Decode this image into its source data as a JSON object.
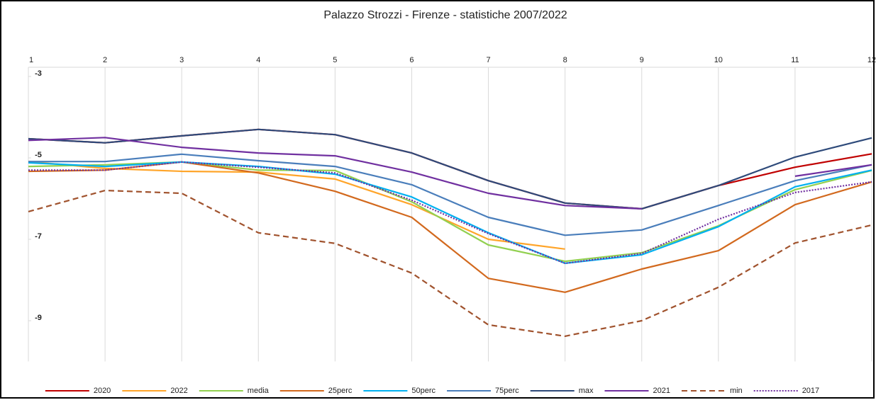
{
  "chart_data": {
    "type": "line",
    "title": "Palazzo Strozzi - Firenze - statistiche 2007/2022",
    "x": [
      1,
      2,
      3,
      4,
      5,
      6,
      7,
      8,
      9,
      10,
      11,
      12
    ],
    "xlim": [
      1,
      12
    ],
    "xticks": [
      1,
      2,
      3,
      4,
      5,
      6,
      7,
      8,
      9,
      10,
      11,
      12
    ],
    "ylim": [
      -10,
      -3
    ],
    "yticks": [
      -3,
      -5,
      -7,
      -9
    ],
    "grid": "vertical",
    "legend": "bottom",
    "series": [
      {
        "name": "2020",
        "color": "#c00000",
        "style": "solid",
        "values": [
          -4.53,
          -4.63,
          -4.46,
          -4.3,
          -4.43,
          -4.88,
          -5.56,
          -6.11,
          -6.25,
          -5.68,
          -5.23,
          -4.9
        ]
      },
      {
        "name": "2022",
        "color": "#ffa52a",
        "style": "solid",
        "values": [
          -5.09,
          -5.26,
          -5.33,
          -5.35,
          -5.52,
          -6.15,
          -7.0,
          -7.24,
          null,
          null,
          null,
          null
        ]
      },
      {
        "name": "media",
        "color": "#92d050",
        "style": "solid",
        "values": [
          -5.21,
          -5.17,
          -5.1,
          -5.3,
          -5.31,
          -6.08,
          -7.14,
          -7.54,
          -7.33,
          -6.67,
          -5.78,
          -5.31
        ]
      },
      {
        "name": "25perc",
        "color": "#d2691e",
        "style": "solid",
        "values": [
          -5.33,
          -5.3,
          -5.1,
          -5.37,
          -5.82,
          -6.46,
          -7.96,
          -8.3,
          -7.73,
          -7.28,
          -6.15,
          -5.59
        ]
      },
      {
        "name": "50perc",
        "color": "#00b0f0",
        "style": "solid",
        "values": [
          -5.12,
          -5.21,
          -5.1,
          -5.21,
          -5.4,
          -5.96,
          -6.84,
          -7.59,
          -7.38,
          -6.69,
          -5.71,
          -5.3
        ]
      },
      {
        "name": "75perc",
        "color": "#4a7ebb",
        "style": "solid",
        "values": [
          -5.09,
          -5.09,
          -4.91,
          -5.07,
          -5.21,
          -5.66,
          -6.46,
          -6.9,
          -6.77,
          -6.17,
          -5.56,
          -5.17
        ]
      },
      {
        "name": "max",
        "color": "#2e4a7a",
        "style": "solid",
        "values": [
          -4.53,
          -4.63,
          -4.46,
          -4.3,
          -4.43,
          -4.88,
          -5.56,
          -6.11,
          -6.25,
          -5.68,
          -4.98,
          -4.51
        ]
      },
      {
        "name": "2021",
        "color": "#7030a0",
        "style": "solid",
        "values": [
          -4.57,
          -4.5,
          -4.74,
          -4.88,
          -4.95,
          -5.35,
          -5.87,
          -6.17,
          -6.25,
          null,
          -5.45,
          -5.17
        ]
      },
      {
        "name": "min",
        "color": "#a0522d",
        "style": "dashed",
        "values": [
          -6.32,
          -5.8,
          -5.87,
          -6.84,
          -7.1,
          -7.83,
          -9.1,
          -9.38,
          -9.0,
          -8.18,
          -7.09,
          -6.65
        ]
      },
      {
        "name": "2017",
        "color": "#7030a0",
        "style": "dotted",
        "values": [
          -5.3,
          -5.3,
          -5.1,
          -5.23,
          -5.37,
          -6.04,
          -6.86,
          -7.59,
          -7.35,
          -6.51,
          -5.85,
          -5.59
        ]
      }
    ]
  }
}
